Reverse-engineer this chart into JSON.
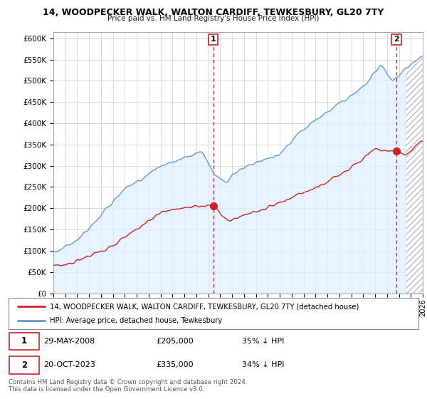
{
  "title1": "14, WOODPECKER WALK, WALTON CARDIFF, TEWKESBURY, GL20 7TY",
  "title2": "Price paid vs. HM Land Registry's House Price Index (HPI)",
  "yticks": [
    0,
    50000,
    100000,
    150000,
    200000,
    250000,
    300000,
    350000,
    400000,
    450000,
    500000,
    550000,
    600000
  ],
  "ylim": [
    0,
    615000
  ],
  "xlim": [
    1995,
    2026
  ],
  "legend_line1": "14, WOODPECKER WALK, WALTON CARDIFF, TEWKESBURY, GL20 7TY (detached house)",
  "legend_line2": "HPI: Average price, detached house, Tewkesbury",
  "marker1_date": "29-MAY-2008",
  "marker1_price": "£205,000",
  "marker1_hpi": "35% ↓ HPI",
  "marker2_date": "20-OCT-2023",
  "marker2_price": "£335,000",
  "marker2_hpi": "34% ↓ HPI",
  "footer": "Contains HM Land Registry data © Crown copyright and database right 2024.\nThis data is licensed under the Open Government Licence v3.0.",
  "red_color": "#cc2222",
  "blue_color": "#6699cc",
  "blue_fill": "#ddeeff",
  "hatch_color": "#cccccc",
  "marker1_x": 2008.41,
  "marker1_y": 205000,
  "marker2_x": 2023.79,
  "marker2_y": 335000,
  "hatch_start_x": 2024.5
}
